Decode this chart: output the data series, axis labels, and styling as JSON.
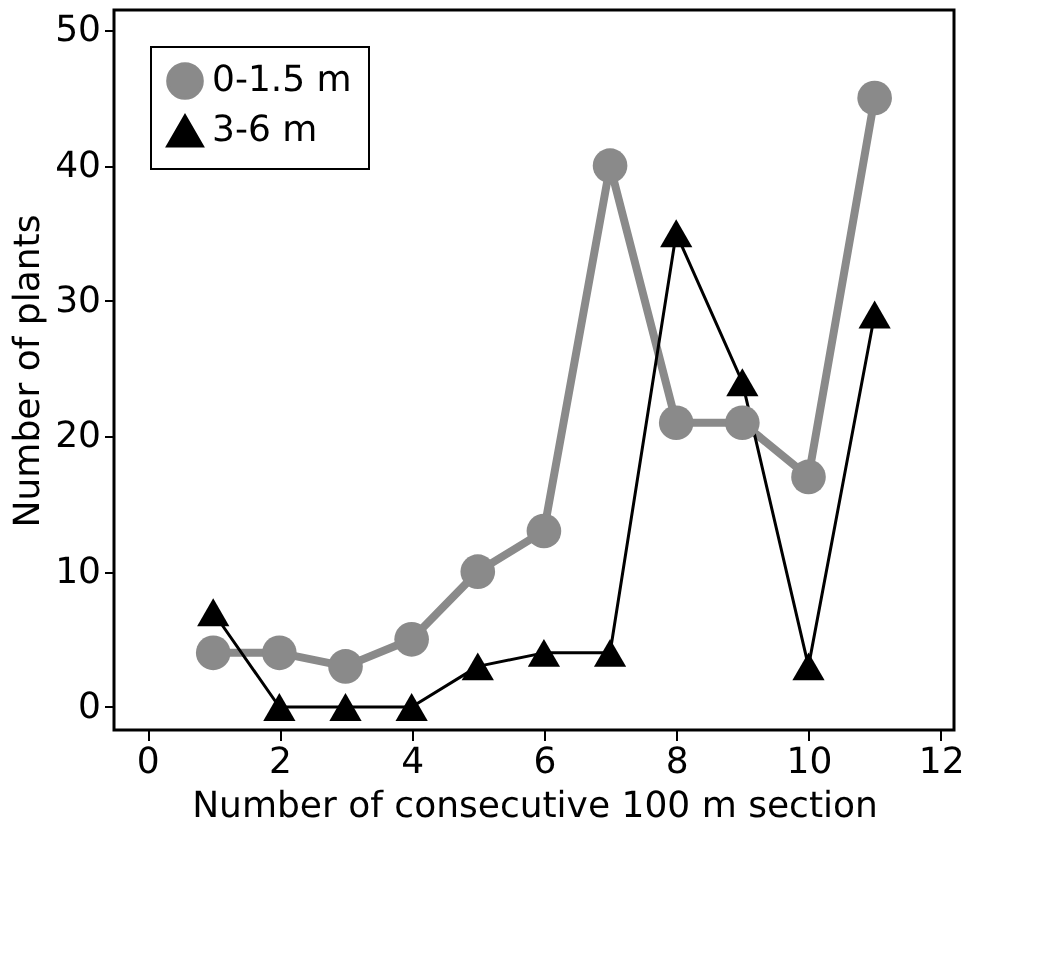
{
  "chart_data": {
    "type": "line",
    "xlabel": "Number of consecutive 100 m section",
    "ylabel": "Number of plants",
    "x": [
      1,
      2,
      3,
      4,
      5,
      6,
      7,
      8,
      9,
      10,
      11
    ],
    "series": [
      {
        "name": "0-1.5 m",
        "color": "#8a8a8a",
        "marker": "circle",
        "values": [
          4,
          4,
          3,
          5,
          10,
          13,
          40,
          21,
          21,
          17,
          45
        ]
      },
      {
        "name": "3-6 m",
        "color": "#000000",
        "marker": "triangle",
        "values": [
          7,
          0,
          0,
          0,
          3,
          4,
          4,
          35,
          24,
          3,
          29
        ]
      }
    ],
    "xlim": [
      -0.5,
      12.2
    ],
    "xticks": [
      0,
      2,
      4,
      6,
      8,
      10,
      12
    ],
    "ylim": [
      -1.7,
      51.5
    ],
    "yticks": [
      0,
      10,
      20,
      30,
      40,
      50
    ],
    "legend": "top left",
    "grid": false
  }
}
